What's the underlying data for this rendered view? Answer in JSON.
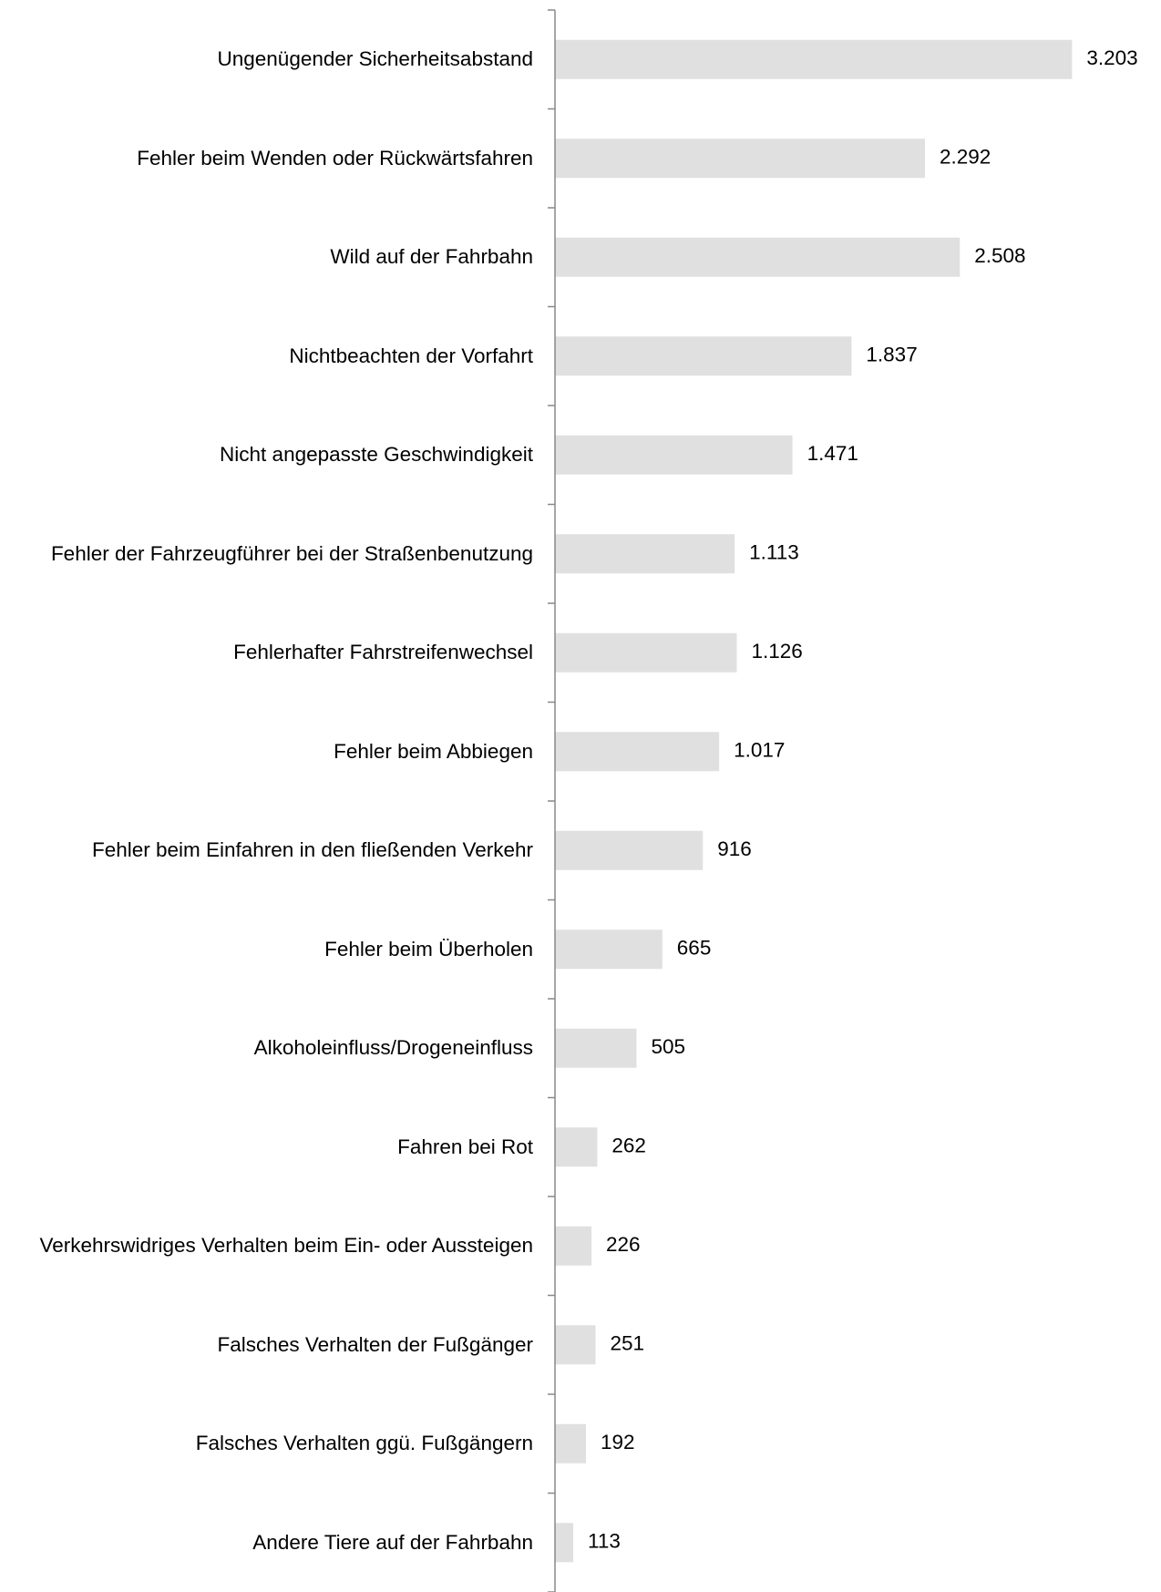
{
  "chart_data": {
    "type": "bar",
    "orientation": "horizontal",
    "categories": [
      "Ungenügender Sicherheitsabstand",
      "Fehler beim Wenden oder Rückwärtsfahren",
      "Wild auf der Fahrbahn",
      "Nichtbeachten der Vorfahrt",
      "Nicht angepasste Geschwindigkeit",
      "Fehler der Fahrzeugführer bei der Straßenbenutzung",
      "Fehlerhafter Fahrstreifenwechsel",
      "Fehler beim Abbiegen",
      "Fehler beim Einfahren in den fließenden Verkehr",
      "Fehler beim Überholen",
      "Alkoholeinfluss/Drogeneinfluss",
      "Fahren bei Rot",
      "Verkehrswidriges Verhalten beim Ein- oder Aussteigen",
      "Falsches Verhalten der Fußgänger",
      "Falsches Verhalten ggü. Fußgängern",
      "Andere Tiere auf der Fahrbahn"
    ],
    "values": [
      3203,
      2292,
      2508,
      1837,
      1471,
      1113,
      1126,
      1017,
      916,
      665,
      505,
      262,
      226,
      251,
      192,
      113
    ],
    "value_labels": [
      "3.203",
      "2.292",
      "2.508",
      "1.837",
      "1.471",
      "1.113",
      "1.126",
      "1.017",
      "916",
      "665",
      "505",
      "262",
      "226",
      "251",
      "192",
      "113"
    ],
    "color": "#e0e0e0",
    "xlim": [
      0,
      3500
    ]
  }
}
